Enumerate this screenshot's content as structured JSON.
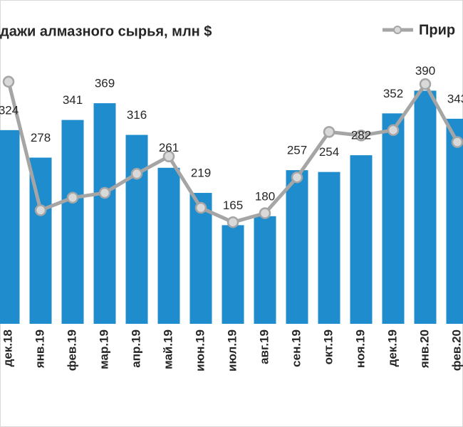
{
  "chart_data": {
    "type": "bar",
    "title": "дажи алмазного сырья, млн $",
    "categories": [
      "дек.18",
      "янв.19",
      "фев.19",
      "мар.19",
      "апр.19",
      "май.19",
      "июн.19",
      "июл.19",
      "авг.19",
      "сен.19",
      "окт.19",
      "ноя.19",
      "дек.19",
      "янв.20",
      "фев.20"
    ],
    "series": [
      {
        "type": "bar",
        "color": "#1f8dcd",
        "values": [
          324,
          278,
          341,
          369,
          316,
          261,
          219,
          165,
          180,
          257,
          254,
          282,
          352,
          390,
          343
        ]
      },
      {
        "type": "line",
        "name": "Прир",
        "color": "#a5a5a5",
        "values": [
          405,
          190,
          211,
          219,
          251,
          280,
          194,
          170,
          185,
          245,
          321,
          315,
          324,
          401,
          304
        ]
      }
    ],
    "ylim": [
      0,
      450
    ]
  }
}
